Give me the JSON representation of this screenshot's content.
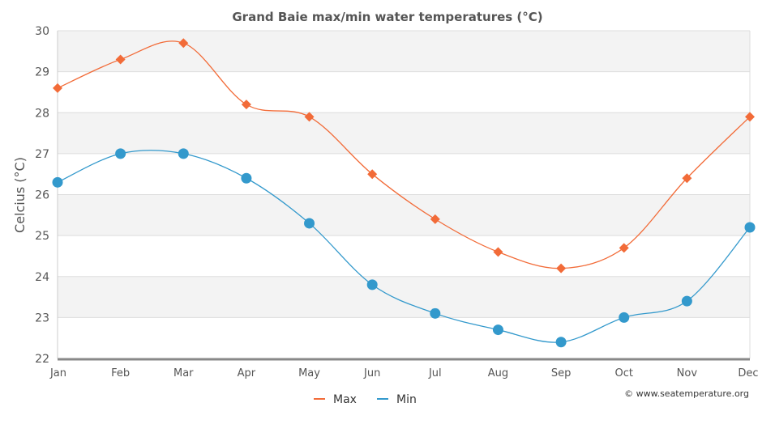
{
  "chart_data": {
    "type": "line",
    "title": "Grand Baie max/min water temperatures (°C)",
    "ylabel": "Celcius (°C)",
    "xlabel": "",
    "categories": [
      "Jan",
      "Feb",
      "Mar",
      "Apr",
      "May",
      "Jun",
      "Jul",
      "Aug",
      "Sep",
      "Oct",
      "Nov",
      "Dec"
    ],
    "ylim": [
      22,
      30
    ],
    "yticks": [
      22,
      23,
      24,
      25,
      26,
      27,
      28,
      29,
      30
    ],
    "grid": true,
    "legend_position": "bottom-center",
    "series": [
      {
        "name": "Max",
        "color": "#f26b38",
        "marker": "diamond",
        "values": [
          28.6,
          29.3,
          29.7,
          28.2,
          27.9,
          26.5,
          25.4,
          24.6,
          24.2,
          24.7,
          26.4,
          27.9
        ]
      },
      {
        "name": "Min",
        "color": "#3399cc",
        "marker": "circle",
        "values": [
          26.3,
          27.0,
          27.0,
          26.4,
          25.3,
          23.8,
          23.1,
          22.7,
          22.4,
          23.0,
          23.4,
          25.2
        ]
      }
    ],
    "credit": "© www.seatemperature.org"
  }
}
